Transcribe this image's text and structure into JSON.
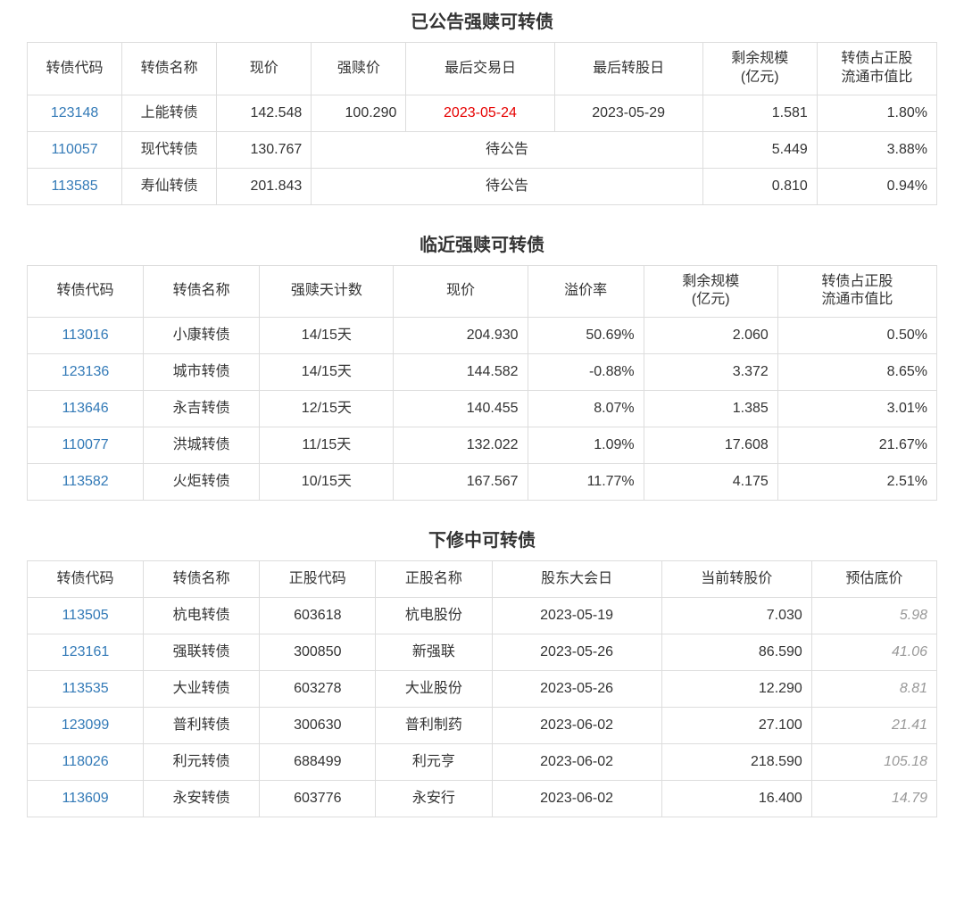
{
  "table1": {
    "title": "已公告强赎可转债",
    "colWidths": [
      "106px",
      "106px",
      "106px",
      "106px",
      "166px",
      "166px",
      "128px",
      "134px"
    ],
    "headers": [
      "转债代码",
      "转债名称",
      "现价",
      "强赎价",
      "最后交易日",
      "最后转股日",
      "剩余规模\n(亿元)",
      "转债占正股\n流通市值比"
    ],
    "rows": [
      {
        "code": "123148",
        "name": "上能转债",
        "price": "142.548",
        "redeem": "100.290",
        "lastTrade": "2023-05-24",
        "lastTradeRed": true,
        "lastConvert": "2023-05-29",
        "scale": "1.581",
        "ratio": "1.80%"
      },
      {
        "code": "110057",
        "name": "现代转债",
        "price": "130.767",
        "pending": "待公告",
        "scale": "5.449",
        "ratio": "3.88%"
      },
      {
        "code": "113585",
        "name": "寿仙转债",
        "price": "201.843",
        "pending": "待公告",
        "scale": "0.810",
        "ratio": "0.94%"
      }
    ]
  },
  "table2": {
    "title": "临近强赎可转债",
    "colWidths": [
      "130px",
      "130px",
      "150px",
      "150px",
      "130px",
      "150px",
      "178px"
    ],
    "headers": [
      "转债代码",
      "转债名称",
      "强赎天计数",
      "现价",
      "溢价率",
      "剩余规模\n(亿元)",
      "转债占正股\n流通市值比"
    ],
    "rows": [
      {
        "code": "113016",
        "name": "小康转债",
        "days": "14/15天",
        "price": "204.930",
        "prem": "50.69%",
        "scale": "2.060",
        "ratio": "0.50%"
      },
      {
        "code": "123136",
        "name": "城市转债",
        "days": "14/15天",
        "price": "144.582",
        "prem": "-0.88%",
        "scale": "3.372",
        "ratio": "8.65%"
      },
      {
        "code": "113646",
        "name": "永吉转债",
        "days": "12/15天",
        "price": "140.455",
        "prem": "8.07%",
        "scale": "1.385",
        "ratio": "3.01%"
      },
      {
        "code": "110077",
        "name": "洪城转债",
        "days": "11/15天",
        "price": "132.022",
        "prem": "1.09%",
        "scale": "17.608",
        "ratio": "21.67%"
      },
      {
        "code": "113582",
        "name": "火炬转债",
        "days": "10/15天",
        "price": "167.567",
        "prem": "11.77%",
        "scale": "4.175",
        "ratio": "2.51%"
      }
    ]
  },
  "table3": {
    "title": "下修中可转债",
    "colWidths": [
      "130px",
      "130px",
      "130px",
      "130px",
      "190px",
      "168px",
      "140px"
    ],
    "headers": [
      "转债代码",
      "转债名称",
      "正股代码",
      "正股名称",
      "股东大会日",
      "当前转股价",
      "预估底价"
    ],
    "rows": [
      {
        "code": "113505",
        "name": "杭电转债",
        "stockCode": "603618",
        "stockName": "杭电股份",
        "meeting": "2023-05-19",
        "convPrice": "7.030",
        "floor": "5.98"
      },
      {
        "code": "123161",
        "name": "强联转债",
        "stockCode": "300850",
        "stockName": "新强联",
        "meeting": "2023-05-26",
        "convPrice": "86.590",
        "floor": "41.06"
      },
      {
        "code": "113535",
        "name": "大业转债",
        "stockCode": "603278",
        "stockName": "大业股份",
        "meeting": "2023-05-26",
        "convPrice": "12.290",
        "floor": "8.81"
      },
      {
        "code": "123099",
        "name": "普利转债",
        "stockCode": "300630",
        "stockName": "普利制药",
        "meeting": "2023-06-02",
        "convPrice": "27.100",
        "floor": "21.41"
      },
      {
        "code": "118026",
        "name": "利元转债",
        "stockCode": "688499",
        "stockName": "利元亨",
        "meeting": "2023-06-02",
        "convPrice": "218.590",
        "floor": "105.18"
      },
      {
        "code": "113609",
        "name": "永安转债",
        "stockCode": "603776",
        "stockName": "永安行",
        "meeting": "2023-06-02",
        "convPrice": "16.400",
        "floor": "14.79"
      }
    ]
  }
}
